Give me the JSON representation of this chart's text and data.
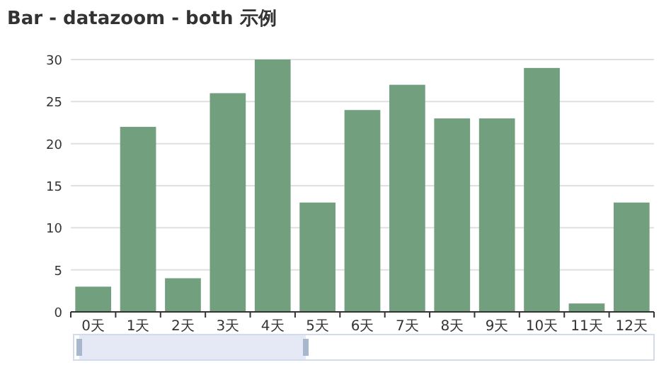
{
  "chart_data": {
    "type": "bar",
    "title": "Bar - datazoom - both 示例",
    "categories": [
      "0天",
      "1天",
      "2天",
      "3天",
      "4天",
      "5天",
      "6天",
      "7天",
      "8天",
      "9天",
      "10天",
      "11天",
      "12天"
    ],
    "values": [
      3,
      22,
      4,
      26,
      30,
      13,
      24,
      27,
      23,
      23,
      29,
      1,
      13
    ],
    "color": "#72a07f",
    "ylim": [
      0,
      30
    ],
    "yticks": [
      0,
      5,
      10,
      15,
      20,
      25,
      30
    ],
    "grid": "y"
  }
}
